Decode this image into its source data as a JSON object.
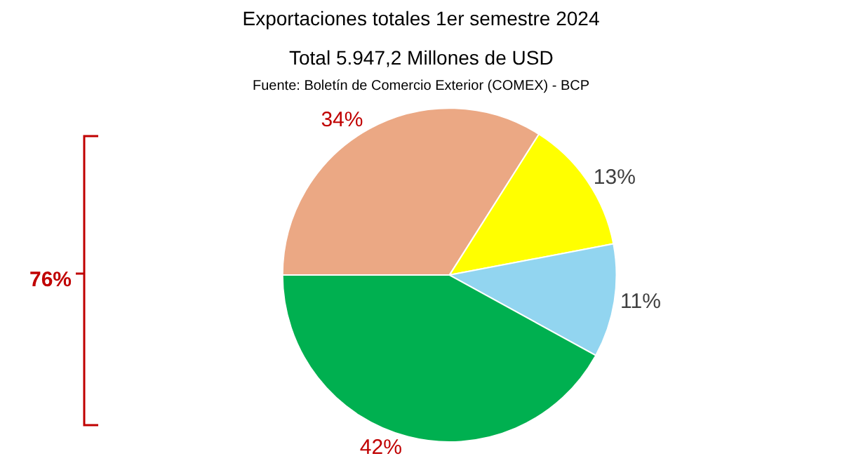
{
  "chart_data": {
    "type": "pie",
    "title": "Exportaciones totales 1er semestre 2024",
    "subtitle": "Total 5.947,2 Millones de USD",
    "annotations": [
      "Fuente: Boletín de Comercio Exterior (COMEX) - BCP",
      "76%"
    ],
    "categories": [
      null,
      null,
      null,
      null
    ],
    "values": [
      34,
      13,
      11,
      42
    ],
    "colors": [
      "#eba884",
      "#ffff00",
      "#92d5f0",
      "#00b050"
    ],
    "value_labels": [
      "34%",
      "13%",
      "11%",
      "42%"
    ],
    "legend": false
  }
}
